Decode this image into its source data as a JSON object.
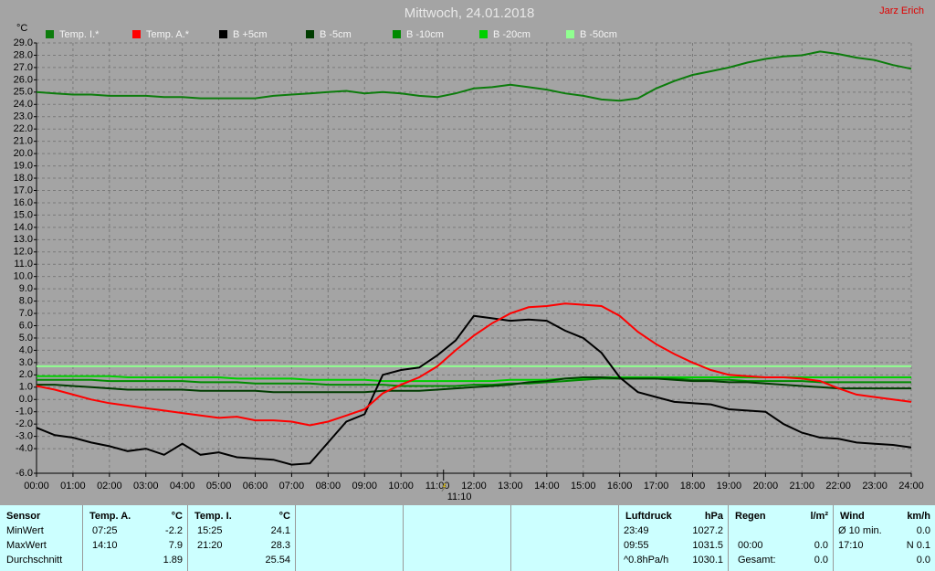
{
  "chart_data": {
    "type": "line",
    "title": "Mittwoch, 24.01.2018",
    "author": "Jarz Erich",
    "y_label": "°C",
    "grid": true,
    "x": [
      0,
      0.5,
      1,
      1.5,
      2,
      2.5,
      3,
      3.5,
      4,
      4.5,
      5,
      5.5,
      6,
      6.5,
      7,
      7.5,
      8,
      8.5,
      9,
      9.5,
      10,
      10.5,
      11,
      11.5,
      12,
      12.5,
      13,
      13.5,
      14,
      14.5,
      15,
      15.5,
      16,
      16.5,
      17,
      17.5,
      18,
      18.5,
      19,
      19.5,
      20,
      20.5,
      21,
      21.5,
      22,
      22.5,
      23,
      23.5,
      24
    ],
    "xlim": [
      0,
      24
    ],
    "xticks": [
      {
        "value": 0,
        "label": "00:00"
      },
      {
        "value": 1,
        "label": "01:00"
      },
      {
        "value": 2,
        "label": "02:00"
      },
      {
        "value": 3,
        "label": "03:00"
      },
      {
        "value": 4,
        "label": "04:00"
      },
      {
        "value": 5,
        "label": "05:00"
      },
      {
        "value": 6,
        "label": "06:00"
      },
      {
        "value": 7,
        "label": "07:00"
      },
      {
        "value": 8,
        "label": "08:00"
      },
      {
        "value": 9,
        "label": "09:00"
      },
      {
        "value": 10,
        "label": "10:00"
      },
      {
        "value": 11,
        "label": "11:00"
      },
      {
        "value": 12,
        "label": "12:00"
      },
      {
        "value": 13,
        "label": "13:00"
      },
      {
        "value": 14,
        "label": "14:00"
      },
      {
        "value": 15,
        "label": "15:00"
      },
      {
        "value": 16,
        "label": "16:00"
      },
      {
        "value": 17,
        "label": "17:00"
      },
      {
        "value": 18,
        "label": "18:00"
      },
      {
        "value": 19,
        "label": "19:00"
      },
      {
        "value": 20,
        "label": "20:00"
      },
      {
        "value": 21,
        "label": "21:00"
      },
      {
        "value": 22,
        "label": "22:00"
      },
      {
        "value": 23,
        "label": "23:00"
      },
      {
        "value": 24,
        "label": "24:00"
      }
    ],
    "ylim": [
      -6,
      29
    ],
    "yticks": [
      {
        "value": 29,
        "label": "29.0"
      },
      {
        "value": 28,
        "label": "28.0"
      },
      {
        "value": 27,
        "label": "27.0"
      },
      {
        "value": 26,
        "label": "26.0"
      },
      {
        "value": 25,
        "label": "25.0"
      },
      {
        "value": 24,
        "label": "24.0"
      },
      {
        "value": 23,
        "label": "23.0"
      },
      {
        "value": 22,
        "label": "22.0"
      },
      {
        "value": 21,
        "label": "21.0"
      },
      {
        "value": 20,
        "label": "20.0"
      },
      {
        "value": 19,
        "label": "19.0"
      },
      {
        "value": 18,
        "label": "18.0"
      },
      {
        "value": 17,
        "label": "17.0"
      },
      {
        "value": 16,
        "label": "16.0"
      },
      {
        "value": 15,
        "label": "15.0"
      },
      {
        "value": 14,
        "label": "14.0"
      },
      {
        "value": 13,
        "label": "13.0"
      },
      {
        "value": 12,
        "label": "12.0"
      },
      {
        "value": 11,
        "label": "11.0"
      },
      {
        "value": 10,
        "label": "10.0"
      },
      {
        "value": 9,
        "label": "9.0"
      },
      {
        "value": 8,
        "label": "8.0"
      },
      {
        "value": 7,
        "label": "7.0"
      },
      {
        "value": 6,
        "label": "6.0"
      },
      {
        "value": 5,
        "label": "5.0"
      },
      {
        "value": 4,
        "label": "4.0"
      },
      {
        "value": 3,
        "label": "3.0"
      },
      {
        "value": 2,
        "label": "2.0"
      },
      {
        "value": 1,
        "label": "1.0"
      },
      {
        "value": 0,
        "label": "0.0"
      },
      {
        "value": -1,
        "label": "-1.0"
      },
      {
        "value": -2,
        "label": "-2.0"
      },
      {
        "value": -3,
        "label": "-3.0"
      },
      {
        "value": -4,
        "label": "-4.0"
      },
      {
        "value": -6,
        "label": "-6.0"
      }
    ],
    "marker": {
      "x": 11.1667,
      "label": "11:10"
    },
    "series": [
      {
        "name": "Temp. I.*",
        "color": "#0c7c0c",
        "values": [
          25.0,
          24.9,
          24.8,
          24.8,
          24.7,
          24.7,
          24.7,
          24.6,
          24.6,
          24.5,
          24.5,
          24.5,
          24.5,
          24.7,
          24.8,
          24.9,
          25.0,
          25.1,
          24.9,
          25.0,
          24.9,
          24.7,
          24.6,
          24.9,
          25.3,
          25.4,
          25.6,
          25.4,
          25.2,
          24.9,
          24.7,
          24.4,
          24.3,
          24.5,
          25.3,
          25.9,
          26.4,
          26.7,
          27.0,
          27.4,
          27.7,
          27.9,
          28.0,
          28.3,
          28.1,
          27.8,
          27.6,
          27.2,
          26.9
        ]
      },
      {
        "name": "Temp. A.*",
        "color": "#ff0000",
        "values": [
          1.1,
          0.8,
          0.4,
          0.0,
          -0.3,
          -0.5,
          -0.7,
          -0.9,
          -1.1,
          -1.3,
          -1.5,
          -1.4,
          -1.7,
          -1.7,
          -1.8,
          -2.1,
          -1.8,
          -1.3,
          -0.8,
          0.5,
          1.2,
          1.8,
          2.7,
          4.0,
          5.2,
          6.2,
          7.0,
          7.5,
          7.6,
          7.8,
          7.7,
          7.6,
          6.8,
          5.5,
          4.5,
          3.7,
          3.0,
          2.4,
          2.0,
          1.9,
          1.8,
          1.8,
          1.7,
          1.5,
          0.9,
          0.4,
          0.2,
          0.0,
          -0.2
        ]
      },
      {
        "name": "B +5cm",
        "color": "#000000",
        "values": [
          -2.3,
          -2.9,
          -3.1,
          -3.5,
          -3.8,
          -4.2,
          -4.0,
          -4.5,
          -3.6,
          -4.5,
          -4.3,
          -4.7,
          -4.8,
          -4.9,
          -5.3,
          -5.2,
          -3.5,
          -1.8,
          -1.2,
          2.0,
          2.4,
          2.6,
          3.6,
          4.8,
          6.8,
          6.6,
          6.4,
          6.5,
          6.4,
          5.6,
          5.0,
          3.8,
          1.8,
          0.6,
          0.2,
          -0.2,
          -0.3,
          -0.4,
          -0.8,
          -0.9,
          -1.0,
          -2.0,
          -2.7,
          -3.1,
          -3.2,
          -3.5,
          -3.6,
          -3.7,
          -3.9
        ]
      },
      {
        "name": "B -5cm",
        "color": "#003c00",
        "values": [
          1.2,
          1.2,
          1.1,
          1.0,
          0.9,
          0.8,
          0.8,
          0.8,
          0.8,
          0.7,
          0.7,
          0.7,
          0.7,
          0.6,
          0.6,
          0.6,
          0.6,
          0.6,
          0.6,
          0.7,
          0.7,
          0.7,
          0.8,
          0.9,
          1.0,
          1.1,
          1.2,
          1.4,
          1.5,
          1.7,
          1.8,
          1.8,
          1.7,
          1.7,
          1.7,
          1.6,
          1.5,
          1.5,
          1.4,
          1.4,
          1.3,
          1.2,
          1.1,
          1.0,
          0.9,
          0.9,
          0.9,
          0.9,
          0.9
        ]
      },
      {
        "name": "B -10cm",
        "color": "#008a00",
        "values": [
          1.6,
          1.6,
          1.6,
          1.6,
          1.5,
          1.5,
          1.5,
          1.5,
          1.5,
          1.4,
          1.4,
          1.4,
          1.3,
          1.3,
          1.3,
          1.3,
          1.2,
          1.2,
          1.2,
          1.2,
          1.1,
          1.1,
          1.1,
          1.1,
          1.2,
          1.2,
          1.3,
          1.3,
          1.4,
          1.5,
          1.6,
          1.7,
          1.7,
          1.7,
          1.7,
          1.7,
          1.6,
          1.6,
          1.6,
          1.5,
          1.5,
          1.5,
          1.5,
          1.4,
          1.4,
          1.4,
          1.4,
          1.4,
          1.4
        ]
      },
      {
        "name": "B -20cm",
        "color": "#00d000",
        "values": [
          1.9,
          1.9,
          1.9,
          1.9,
          1.9,
          1.8,
          1.8,
          1.8,
          1.8,
          1.8,
          1.8,
          1.7,
          1.7,
          1.7,
          1.7,
          1.6,
          1.6,
          1.6,
          1.6,
          1.5,
          1.5,
          1.5,
          1.5,
          1.5,
          1.5,
          1.5,
          1.6,
          1.6,
          1.6,
          1.7,
          1.7,
          1.8,
          1.8,
          1.8,
          1.8,
          1.8,
          1.8,
          1.8,
          1.8,
          1.8,
          1.8,
          1.8,
          1.8,
          1.8,
          1.8,
          1.8,
          1.8,
          1.8,
          1.8
        ]
      },
      {
        "name": "B -50cm",
        "color": "#90ff90",
        "values": [
          2.7,
          2.7,
          2.7,
          2.7,
          2.7,
          2.7,
          2.7,
          2.7,
          2.7,
          2.7,
          2.7,
          2.7,
          2.7,
          2.7,
          2.7,
          2.7,
          2.7,
          2.7,
          2.7,
          2.7,
          2.7,
          2.7,
          2.7,
          2.7,
          2.7,
          2.7,
          2.7,
          2.7,
          2.7,
          2.7,
          2.7,
          2.7,
          2.7,
          2.7,
          2.7,
          2.7,
          2.7,
          2.7,
          2.7,
          2.7,
          2.7,
          2.7,
          2.7,
          2.7,
          2.7,
          2.7,
          2.7,
          2.7,
          2.7
        ]
      }
    ]
  },
  "table": {
    "row_labels": [
      "Sensor",
      "MinWert",
      "MaxWert",
      "Durchschnitt"
    ],
    "columns": [
      {
        "title": "Temp. A.",
        "unit": "°C",
        "rows": [
          {
            "time": "07:25",
            "value": "-2.2"
          },
          {
            "time": "14:10",
            "value": "7.9"
          },
          {
            "value": "1.89"
          }
        ]
      },
      {
        "title": "Temp. I.",
        "unit": "°C",
        "rows": [
          {
            "time": "15:25",
            "value": "24.1"
          },
          {
            "time": "21:20",
            "value": "28.3"
          },
          {
            "value": "25.54"
          }
        ]
      },
      {
        "title": "Luftdruck",
        "unit": "hPa",
        "rows": [
          {
            "time": "23:49",
            "value": "1027.2"
          },
          {
            "time": "09:55",
            "value": "1031.5"
          },
          {
            "time": "^0.8hPa/h",
            "value": "1030.1"
          }
        ]
      },
      {
        "title": "Regen",
        "unit": "l/m²",
        "rows": [
          null,
          {
            "time": "00:00",
            "value": "0.0"
          },
          {
            "time": "Gesamt:",
            "value": "0.0"
          }
        ]
      },
      {
        "title": "Wind",
        "unit": "km/h",
        "rows": [
          {
            "time": "Ø 10 min.",
            "value": "0.0"
          },
          {
            "time": "17:10",
            "value": "N 0.1"
          },
          {
            "value": "0.0"
          }
        ]
      }
    ]
  }
}
